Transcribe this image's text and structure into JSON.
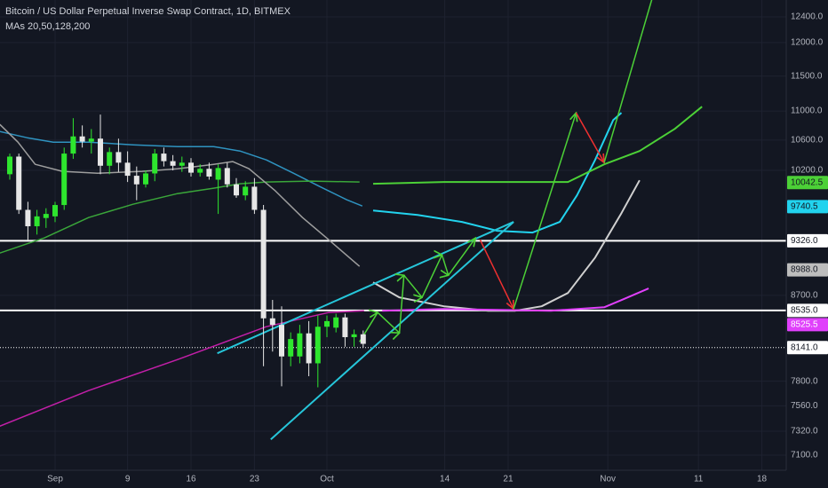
{
  "chart_data": {
    "type": "candlestick",
    "title": "Bitcoin / US Dollar Perpetual Inverse Swap Contract, 1D, BITMEX",
    "subtitle": "MAs 20,50,128,200",
    "log_scale": true,
    "grid": true,
    "up_color": "#2ee62e",
    "down_color": "#e6e6e6",
    "xlim": [
      -6.08,
      80.69
    ],
    "ylim": [
      6965,
      12668
    ],
    "xticks": [
      {
        "value": 0,
        "label": "Sep"
      },
      {
        "value": 8,
        "label": "9"
      },
      {
        "value": 15,
        "label": "16"
      },
      {
        "value": 22,
        "label": "23"
      },
      {
        "value": 30,
        "label": "Oct"
      },
      {
        "value": 43,
        "label": "14"
      },
      {
        "value": 50,
        "label": "21"
      },
      {
        "value": 61,
        "label": "Nov"
      },
      {
        "value": 71,
        "label": "11"
      },
      {
        "value": 78,
        "label": "18"
      }
    ],
    "yticks": [
      {
        "value": 12400,
        "label": "12400.0"
      },
      {
        "value": 12000,
        "label": "12000.0"
      },
      {
        "value": 11500,
        "label": "11500.0"
      },
      {
        "value": 11000,
        "label": "11000.0"
      },
      {
        "value": 10600,
        "label": "10600.0"
      },
      {
        "value": 10200,
        "label": "10200.0"
      },
      {
        "value": 8700,
        "label": "8700.0"
      },
      {
        "value": 7800,
        "label": "7800.0"
      },
      {
        "value": 7560,
        "label": "7560.0"
      },
      {
        "value": 7320,
        "label": "7320.0"
      },
      {
        "value": 7100,
        "label": "7100.0"
      }
    ],
    "candles": {
      "x": [
        -5,
        -4,
        -3,
        -2,
        -1,
        0,
        1,
        2,
        3,
        4,
        5,
        6,
        7,
        8,
        9,
        10,
        11,
        12,
        13,
        14,
        15,
        16,
        17,
        18,
        19,
        20,
        21,
        22,
        23,
        24,
        25,
        26,
        27,
        28,
        29,
        30,
        31,
        32,
        33,
        34
      ],
      "open": [
        10150,
        10380,
        9700,
        9500,
        9600,
        9620,
        9760,
        10420,
        10650,
        10580,
        10620,
        10260,
        10440,
        10300,
        10130,
        10020,
        10160,
        10420,
        10320,
        10260,
        10300,
        10170,
        10220,
        10080,
        10230,
        10020,
        9880,
        9990,
        9700,
        8450,
        8380,
        8050,
        8050,
        8290,
        7980,
        8360,
        8350,
        8460,
        8250,
        8280
      ],
      "high": [
        10420,
        10420,
        9800,
        9700,
        9720,
        9800,
        10500,
        10900,
        10800,
        10750,
        10950,
        10500,
        10620,
        10450,
        10250,
        10200,
        10480,
        10500,
        10400,
        10380,
        10360,
        10280,
        10300,
        10280,
        10300,
        10100,
        10060,
        10100,
        9760,
        8650,
        8580,
        8300,
        8380,
        8420,
        8480,
        8480,
        8500,
        8500,
        8330,
        8320
      ],
      "low": [
        10080,
        9650,
        9330,
        9400,
        9480,
        9550,
        9700,
        10350,
        10500,
        10420,
        10150,
        10150,
        10180,
        10050,
        9820,
        9980,
        10060,
        10250,
        10200,
        10180,
        10120,
        10120,
        10080,
        9650,
        9980,
        9850,
        9820,
        9650,
        7950,
        8100,
        7750,
        7950,
        7980,
        7850,
        7740,
        8250,
        8300,
        8150,
        8150,
        8140
      ],
      "close": [
        10380,
        9700,
        9500,
        9620,
        9650,
        9760,
        10420,
        10650,
        10580,
        10620,
        10260,
        10440,
        10300,
        10130,
        10020,
        10160,
        10420,
        10320,
        10260,
        10300,
        10170,
        10220,
        10120,
        10230,
        10020,
        9880,
        9990,
        9700,
        8450,
        8380,
        8050,
        8230,
        8290,
        7980,
        8360,
        8420,
        8460,
        8250,
        8280,
        8180
      ]
    },
    "lines": [
      {
        "color": "#2f93c0",
        "width": 1.5,
        "x": [
          -6.1,
          -3.1,
          -0.2,
          3.7,
          8.6,
          13.5,
          17.5,
          20.4,
          23.3,
          26.3,
          29.2,
          32.2,
          33.9
        ],
        "values": [
          10717,
          10633,
          10573,
          10573,
          10537,
          10513,
          10513,
          10454,
          10337,
          10163,
          9993,
          9825,
          9748
        ]
      },
      {
        "color": "#22d3ee",
        "width": 2,
        "x": [
          35.1,
          40.0,
          44.9,
          48.8,
          52.7,
          55.7,
          57.6,
          59.6,
          61.6,
          62.5
        ],
        "values": [
          9693,
          9638,
          9552,
          9445,
          9424,
          9552,
          9881,
          10337,
          10875,
          10975
        ]
      },
      {
        "color": "#3aa63a",
        "width": 1.5,
        "x": [
          -6.1,
          -1.2,
          3.7,
          8.6,
          13.5,
          17.5,
          20.4,
          23.3,
          28.2,
          33.6
        ],
        "values": [
          9182,
          9359,
          9606,
          9770,
          9903,
          9971,
          10027,
          10050,
          10061,
          10050
        ]
      },
      {
        "color": "#4cd137",
        "width": 2,
        "x": [
          35.1,
          42.9,
          56.6,
          60.6,
          64.5,
          68.4,
          71.4
        ],
        "values": [
          10027,
          10050,
          10050,
          10279,
          10454,
          10753,
          11061
        ]
      },
      {
        "color": "#9e9e9e",
        "width": 1.5,
        "x": [
          -6.1,
          -4.1,
          -2.2,
          0.8,
          4.7,
          9.6,
          13.5,
          17.5,
          19.6,
          21.4,
          24.3,
          27.3,
          30.2,
          33.6
        ],
        "values": [
          10814,
          10573,
          10279,
          10187,
          10163,
          10187,
          10221,
          10279,
          10314,
          10221,
          9937,
          9606,
          9338,
          9027
        ]
      },
      {
        "color": "#d0d0d0",
        "width": 2,
        "x": [
          35.1,
          38.0,
          42.9,
          47.8,
          50.8,
          53.7,
          56.6,
          59.6,
          62.5,
          64.5
        ],
        "values": [
          8846,
          8678,
          8580,
          8532,
          8532,
          8580,
          8727,
          9129,
          9660,
          10072
        ]
      },
      {
        "color": "#c21fa8",
        "width": 1.5,
        "x": [
          -6.1,
          3.7,
          13.5,
          23.3,
          30.2,
          34.1
        ],
        "values": [
          7367,
          7708,
          8018,
          8360,
          8513,
          8532
        ]
      },
      {
        "color": "#e040fb",
        "width": 2,
        "x": [
          36.1,
          42.9,
          54.7,
          60.6,
          62.5,
          65.5
        ],
        "values": [
          8532,
          8551,
          8532,
          8570,
          8648,
          8777
        ]
      },
      {
        "color": "#26c6da",
        "width": 2,
        "x": [
          17.9,
          50.6
        ],
        "values": [
          8082,
          9552
        ]
      },
      {
        "color": "#26c6da",
        "width": 2,
        "x": [
          23.8,
          50.6
        ],
        "values": [
          7244,
          9552
        ]
      },
      {
        "color": "#4cd137",
        "width": 1.5,
        "arrow": true,
        "x": [
          33.6,
          35.6,
          38.0,
          38.5,
          40.5,
          42.7,
          43.4,
          46.4
        ],
        "values": [
          8201,
          8513,
          8295,
          8926,
          8678,
          9160,
          8926,
          9359
        ]
      },
      {
        "color": "#ef3030",
        "width": 1.5,
        "arrow": true,
        "x": [
          46.9,
          50.6
        ],
        "values": [
          9338,
          8551
        ]
      },
      {
        "color": "#4cd137",
        "width": 1.5,
        "arrow": true,
        "x": [
          50.6,
          57.5
        ],
        "values": [
          8551,
          10975
        ]
      },
      {
        "color": "#ef3030",
        "width": 1.5,
        "arrow": true,
        "x": [
          57.5,
          60.6
        ],
        "values": [
          10975,
          10302
        ]
      },
      {
        "color": "#4cd137",
        "width": 1.5,
        "x": [
          60.6,
          66.0
        ],
        "values": [
          10302,
          12750
        ]
      }
    ],
    "price_labels": [
      {
        "value": 10042.5,
        "label": "10042.5",
        "color": "#4cd137",
        "text_color": "#131722"
      },
      {
        "value": 9740.5,
        "label": "9740.5",
        "color": "#22d3ee",
        "text_color": "#131722"
      },
      {
        "value": 9326,
        "label": "9326.0",
        "color": "#ffffff",
        "text_color": "#131722",
        "line": "solid"
      },
      {
        "value": 8988,
        "label": "8988.0",
        "color": "#bdbdbd",
        "text_color": "#131722"
      },
      {
        "value": 8535,
        "label": "8535.0",
        "color": "#ffffff",
        "text_color": "#131722",
        "line": "solid"
      },
      {
        "value": 8525.5,
        "label": "8525.5",
        "color": "#e040fb",
        "text_color": "#ffffff"
      },
      {
        "value": 8141,
        "label": "8141.0",
        "color": "#ffffff",
        "text_color": "#131722",
        "line": "dotted"
      }
    ]
  }
}
